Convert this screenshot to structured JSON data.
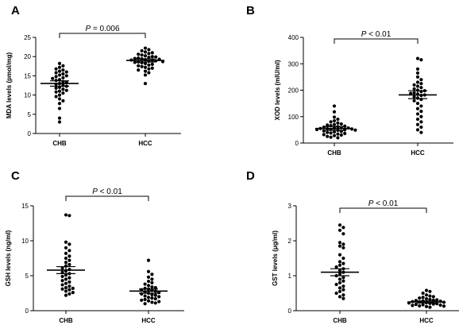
{
  "chart_data": [
    {
      "type": "scatter",
      "panel_label": "A",
      "ylabel": "MDA levels (pmol/mg)",
      "categories": [
        "CHB",
        "HCC"
      ],
      "ylim": [
        0,
        25
      ],
      "yticks": [
        0,
        5,
        10,
        15,
        20,
        25
      ],
      "yticklabels": [
        "0",
        "5",
        "10",
        "15",
        "20",
        "25"
      ],
      "significance_label": "P = 0.006",
      "series": [
        {
          "category": "CHB",
          "mean": 13.0,
          "error": [
            12.3,
            13.7
          ],
          "values": [
            18.2,
            17.6,
            17.2,
            16.8,
            16.5,
            16.2,
            16.0,
            15.8,
            15.5,
            15.2,
            15.0,
            14.8,
            14.5,
            14.3,
            14.0,
            13.8,
            13.5,
            13.3,
            13.0,
            12.8,
            12.5,
            12.3,
            12.0,
            11.8,
            11.5,
            11.2,
            11.0,
            10.8,
            10.5,
            10.0,
            9.6,
            9.0,
            8.5,
            7.8,
            6.5,
            4.0,
            3.0
          ]
        },
        {
          "category": "HCC",
          "mean": 19.0,
          "error": [
            18.6,
            19.4
          ],
          "values": [
            22.2,
            21.8,
            21.5,
            21.2,
            21.0,
            20.8,
            20.6,
            20.4,
            20.2,
            20.0,
            19.9,
            19.8,
            19.6,
            19.5,
            19.4,
            19.3,
            19.2,
            19.1,
            19.0,
            18.9,
            18.8,
            18.7,
            18.6,
            18.5,
            18.4,
            18.2,
            18.0,
            17.8,
            17.6,
            17.4,
            17.2,
            17.0,
            16.8,
            16.5,
            16.2,
            15.8,
            15.2,
            13.0
          ]
        }
      ]
    },
    {
      "type": "scatter",
      "panel_label": "B",
      "ylabel": "XOD levels (mIU/ml)",
      "categories": [
        "CHB",
        "HCC"
      ],
      "ylim": [
        0,
        400
      ],
      "yticks": [
        0,
        100,
        200,
        300,
        400
      ],
      "yticklabels": [
        "0",
        "100",
        "200",
        "300",
        "400"
      ],
      "significance_label": "P < 0.01",
      "series": [
        {
          "category": "CHB",
          "mean": 55,
          "error": [
            48,
            62
          ],
          "values": [
            140,
            118,
            98,
            90,
            84,
            80,
            76,
            72,
            70,
            68,
            66,
            64,
            62,
            60,
            58,
            57,
            56,
            55,
            54,
            53,
            52,
            51,
            50,
            49,
            48,
            46,
            44,
            42,
            40,
            38,
            36,
            34,
            32,
            30,
            28,
            25,
            22,
            20
          ]
        },
        {
          "category": "HCC",
          "mean": 182,
          "error": [
            168,
            198
          ],
          "values": [
            320,
            315,
            280,
            265,
            250,
            240,
            230,
            225,
            220,
            215,
            210,
            205,
            200,
            198,
            195,
            190,
            188,
            185,
            182,
            180,
            175,
            170,
            165,
            160,
            150,
            140,
            130,
            120,
            110,
            100,
            90,
            80,
            70,
            60,
            50,
            40
          ]
        }
      ]
    },
    {
      "type": "scatter",
      "panel_label": "C",
      "ylabel": "GSH levels (ng/ml)",
      "categories": [
        "CHB",
        "HCC"
      ],
      "ylim": [
        0,
        15
      ],
      "yticks": [
        0,
        5,
        10,
        15
      ],
      "yticklabels": [
        "0",
        "5",
        "10",
        "15"
      ],
      "significance_label": "P < 0.01",
      "series": [
        {
          "category": "CHB",
          "mean": 5.8,
          "error": [
            5.3,
            6.3
          ],
          "values": [
            13.7,
            13.6,
            9.8,
            9.5,
            9.0,
            8.6,
            8.2,
            7.8,
            7.5,
            7.2,
            6.9,
            6.6,
            6.4,
            6.1,
            5.9,
            5.7,
            5.5,
            5.3,
            5.1,
            4.9,
            4.7,
            4.5,
            4.3,
            4.1,
            3.9,
            3.7,
            3.5,
            3.3,
            3.2,
            3.1,
            3.0,
            2.8,
            2.6,
            2.4,
            2.2
          ]
        },
        {
          "category": "HCC",
          "mean": 2.8,
          "error": [
            2.5,
            3.1
          ],
          "values": [
            7.2,
            5.6,
            5.2,
            4.8,
            4.5,
            4.2,
            4.0,
            3.8,
            3.6,
            3.4,
            3.3,
            3.2,
            3.1,
            3.0,
            2.9,
            2.8,
            2.7,
            2.6,
            2.5,
            2.4,
            2.3,
            2.2,
            2.1,
            2.0,
            1.9,
            1.8,
            1.7,
            1.6,
            1.5,
            1.4,
            1.3,
            1.2,
            1.1,
            1.0
          ]
        }
      ]
    },
    {
      "type": "scatter",
      "panel_label": "D",
      "ylabel": "GST levels (μg/ml)",
      "categories": [
        "CHB",
        "HCC"
      ],
      "ylim": [
        0,
        3
      ],
      "yticks": [
        0,
        1,
        2,
        3
      ],
      "yticklabels": [
        "0",
        "1",
        "2",
        "3"
      ],
      "significance_label": "P < 0.01",
      "series": [
        {
          "category": "CHB",
          "mean": 1.1,
          "error": [
            1.0,
            1.2
          ],
          "values": [
            2.45,
            2.38,
            2.3,
            2.2,
            1.95,
            1.9,
            1.85,
            1.8,
            1.6,
            1.5,
            1.4,
            1.35,
            1.3,
            1.25,
            1.2,
            1.15,
            1.1,
            1.05,
            1.0,
            0.95,
            0.9,
            0.85,
            0.8,
            0.75,
            0.7,
            0.65,
            0.6,
            0.55,
            0.5,
            0.45,
            0.4,
            0.35
          ]
        },
        {
          "category": "HCC",
          "mean": 0.25,
          "error": [
            0.22,
            0.28
          ],
          "values": [
            0.58,
            0.55,
            0.5,
            0.45,
            0.42,
            0.4,
            0.38,
            0.36,
            0.34,
            0.32,
            0.31,
            0.3,
            0.29,
            0.28,
            0.27,
            0.26,
            0.25,
            0.24,
            0.23,
            0.22,
            0.21,
            0.2,
            0.19,
            0.18,
            0.17,
            0.16,
            0.15,
            0.14,
            0.13,
            0.12,
            0.1
          ]
        }
      ]
    }
  ]
}
